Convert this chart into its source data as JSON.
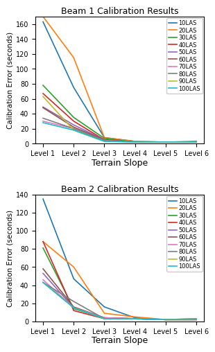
{
  "beam1": {
    "title": "Beam 1 Calibration Results",
    "series_order": [
      "10LAS",
      "20LAS",
      "30LAS",
      "40LAS",
      "50LAS",
      "60LAS",
      "70LAS",
      "80LAS",
      "90LAS",
      "100LAS"
    ],
    "series": {
      "10LAS": [
        163,
        75,
        8,
        3,
        2,
        3
      ],
      "20LAS": [
        170,
        115,
        8,
        3,
        2,
        2
      ],
      "30LAS": [
        78,
        35,
        7,
        2,
        2,
        2
      ],
      "40LAS": [
        67,
        30,
        5,
        2,
        2,
        2
      ],
      "50LAS": [
        49,
        25,
        5,
        2,
        2,
        2
      ],
      "60LAS": [
        48,
        22,
        5,
        2,
        2,
        2
      ],
      "70LAS": [
        30,
        20,
        4,
        2,
        2,
        2
      ],
      "80LAS": [
        34,
        20,
        4,
        2,
        2,
        2
      ],
      "90LAS": [
        63,
        18,
        3,
        2,
        2,
        2
      ],
      "100LAS": [
        28,
        18,
        3,
        2,
        2,
        2
      ]
    },
    "ylim": [
      0,
      170
    ],
    "yticks": [
      0,
      20,
      40,
      60,
      80,
      100,
      120,
      140,
      160
    ]
  },
  "beam2": {
    "title": "Beam 2 Calibration Results",
    "series_order": [
      "10LAS",
      "20LAS",
      "30LAS",
      "40LAS",
      "50LAS",
      "60LAS",
      "70LAS",
      "80LAS",
      "90LAS",
      "100LAS"
    ],
    "series": {
      "10LAS": [
        135,
        47,
        16,
        4,
        2,
        3
      ],
      "20LAS": [
        88,
        60,
        9,
        5,
        2,
        3
      ],
      "30LAS": [
        81,
        14,
        4,
        3,
        2,
        2
      ],
      "40LAS": [
        88,
        12,
        3,
        3,
        2,
        2
      ],
      "50LAS": [
        53,
        15,
        4,
        3,
        2,
        2
      ],
      "60LAS": [
        58,
        16,
        4,
        3,
        2,
        2
      ],
      "70LAS": [
        46,
        15,
        4,
        3,
        2,
        2
      ],
      "80LAS": [
        43,
        22,
        3,
        3,
        2,
        2
      ],
      "90LAS": [
        43,
        15,
        3,
        3,
        2,
        2
      ],
      "100LAS": [
        43,
        15,
        3,
        3,
        2,
        2
      ]
    },
    "ylim": [
      0,
      140
    ],
    "yticks": [
      0,
      20,
      40,
      60,
      80,
      100,
      120,
      140
    ]
  },
  "colors": {
    "10LAS": "#1f77b4",
    "20LAS": "#ff7f0e",
    "30LAS": "#2ca02c",
    "40LAS": "#d62728",
    "50LAS": "#9467bd",
    "60LAS": "#8c564b",
    "70LAS": "#e377c2",
    "80LAS": "#7f7f7f",
    "90LAS": "#bcbd22",
    "100LAS": "#17becf"
  },
  "xlabel": "Terrain Slope",
  "ylabel": "Calibration Error (seconds)",
  "xticklabels": [
    "Level 1",
    "Level 2",
    "Level 3",
    "Level 4",
    "Level 5",
    "Level 6"
  ],
  "title_fontsize": 9,
  "xlabel_fontsize": 9,
  "ylabel_fontsize": 7.5,
  "tick_fontsize": 7,
  "legend_fontsize": 6,
  "linewidth": 1.2
}
